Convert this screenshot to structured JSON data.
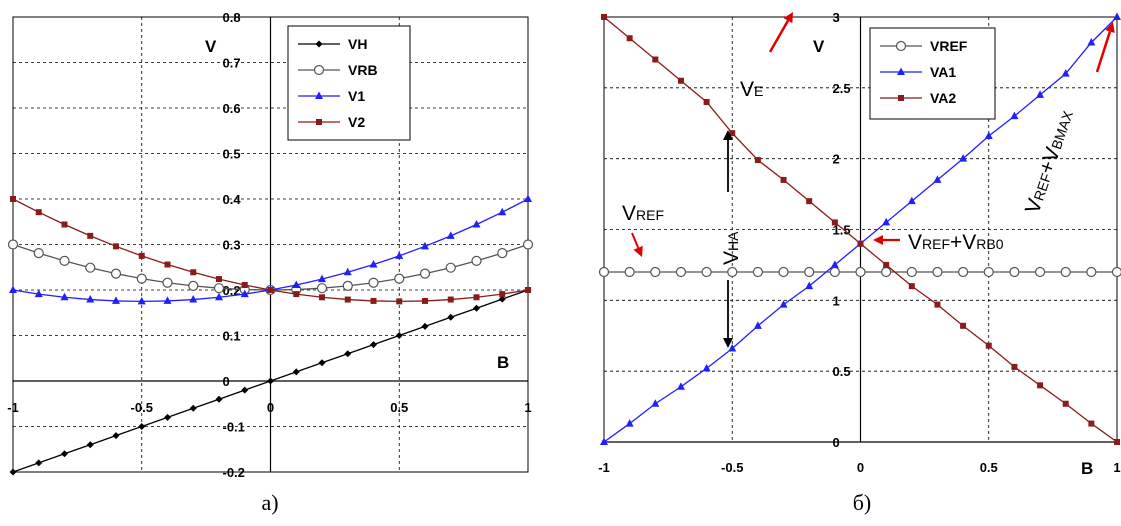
{
  "chart_data": [
    {
      "type": "line",
      "caption": "а)",
      "xlabel": "B",
      "ylabel": "V",
      "xlim": [
        -1,
        1
      ],
      "ylim": [
        -0.2,
        0.8
      ],
      "xticks": [
        "-1",
        "-0.5",
        "0",
        "0.5",
        "1"
      ],
      "yticks": [
        "-0.2",
        "-0.1",
        "0",
        "0.1",
        "0.2",
        "0.3",
        "0.4",
        "0.5",
        "0.6",
        "0.7",
        "0.8"
      ],
      "grid": true,
      "legend_position": "top-right",
      "x": [
        -1,
        -0.9,
        -0.8,
        -0.7,
        -0.6,
        -0.5,
        -0.4,
        -0.3,
        -0.2,
        -0.1,
        0,
        0.1,
        0.2,
        0.3,
        0.4,
        0.5,
        0.6,
        0.7,
        0.8,
        0.9,
        1
      ],
      "series": [
        {
          "name": "VH",
          "color": "#000000",
          "marker": "diamond",
          "values": [
            -0.2,
            -0.18,
            -0.16,
            -0.14,
            -0.12,
            -0.1,
            -0.08,
            -0.06,
            -0.04,
            -0.02,
            0,
            0.02,
            0.04,
            0.06,
            0.08,
            0.1,
            0.12,
            0.14,
            0.16,
            0.18,
            0.2
          ]
        },
        {
          "name": "VRB",
          "color": "#555555",
          "marker": "circle",
          "values": [
            0.3,
            0.281,
            0.264,
            0.249,
            0.236,
            0.225,
            0.216,
            0.209,
            0.204,
            0.201,
            0.2,
            0.201,
            0.204,
            0.209,
            0.216,
            0.225,
            0.236,
            0.249,
            0.264,
            0.281,
            0.3
          ]
        },
        {
          "name": "V1",
          "color": "#1f1fff",
          "marker": "triangle",
          "values": [
            0.2,
            0.191,
            0.184,
            0.179,
            0.176,
            0.175,
            0.176,
            0.179,
            0.184,
            0.191,
            0.2,
            0.211,
            0.224,
            0.239,
            0.256,
            0.275,
            0.296,
            0.319,
            0.344,
            0.371,
            0.4
          ]
        },
        {
          "name": "V2",
          "color": "#8b1a1a",
          "marker": "square",
          "values": [
            0.4,
            0.371,
            0.344,
            0.319,
            0.296,
            0.275,
            0.256,
            0.239,
            0.224,
            0.211,
            0.2,
            0.191,
            0.184,
            0.179,
            0.176,
            0.175,
            0.176,
            0.179,
            0.184,
            0.191,
            0.2
          ]
        }
      ]
    },
    {
      "type": "line",
      "caption": "б)",
      "xlabel": "B",
      "ylabel": "V",
      "xlim": [
        -1,
        1
      ],
      "ylim": [
        0,
        3
      ],
      "xticks": [
        "-1",
        "-0.5",
        "0",
        "0.5",
        "1"
      ],
      "yticks": [
        "0",
        "0.5",
        "1",
        "1.5",
        "2",
        "2.5",
        "3"
      ],
      "grid": true,
      "legend_position": "top-left",
      "x": [
        -1,
        -0.9,
        -0.8,
        -0.7,
        -0.6,
        -0.5,
        -0.4,
        -0.3,
        -0.2,
        -0.1,
        0,
        0.1,
        0.2,
        0.3,
        0.4,
        0.5,
        0.6,
        0.7,
        0.8,
        0.9,
        1
      ],
      "series": [
        {
          "name": "VREF",
          "color": "#555555",
          "marker": "circle",
          "values": [
            1.2,
            1.2,
            1.2,
            1.2,
            1.2,
            1.2,
            1.2,
            1.2,
            1.2,
            1.2,
            1.2,
            1.2,
            1.2,
            1.2,
            1.2,
            1.2,
            1.2,
            1.2,
            1.2,
            1.2,
            1.2
          ]
        },
        {
          "name": "VA1",
          "color": "#1f1fff",
          "marker": "triangle",
          "values": [
            0,
            0.13,
            0.27,
            0.39,
            0.52,
            0.66,
            0.82,
            0.97,
            1.1,
            1.25,
            1.4,
            1.55,
            1.7,
            1.85,
            2,
            2.16,
            2.3,
            2.45,
            2.6,
            2.82,
            3
          ]
        },
        {
          "name": "VA2",
          "color": "#8b1a1a",
          "marker": "square",
          "values": [
            3,
            2.85,
            2.7,
            2.55,
            2.4,
            2.18,
            1.99,
            1.85,
            1.7,
            1.55,
            1.4,
            1.25,
            1.1,
            0.97,
            0.82,
            0.68,
            0.53,
            0.4,
            0.27,
            0.13,
            0
          ]
        }
      ],
      "annotations": {
        "ve": {
          "main": "V",
          "sub": "E"
        },
        "vref": {
          "main": "V",
          "sub": "REF"
        },
        "vha": {
          "main": "V",
          "sub": "HA"
        },
        "vrefrb0": {
          "a": "V",
          "b": "REF",
          "c": "+V",
          "d": "RB0"
        },
        "vrefmax": {
          "a": "V",
          "b": "REF",
          "c": "+V",
          "d": "BMAX"
        }
      }
    }
  ]
}
